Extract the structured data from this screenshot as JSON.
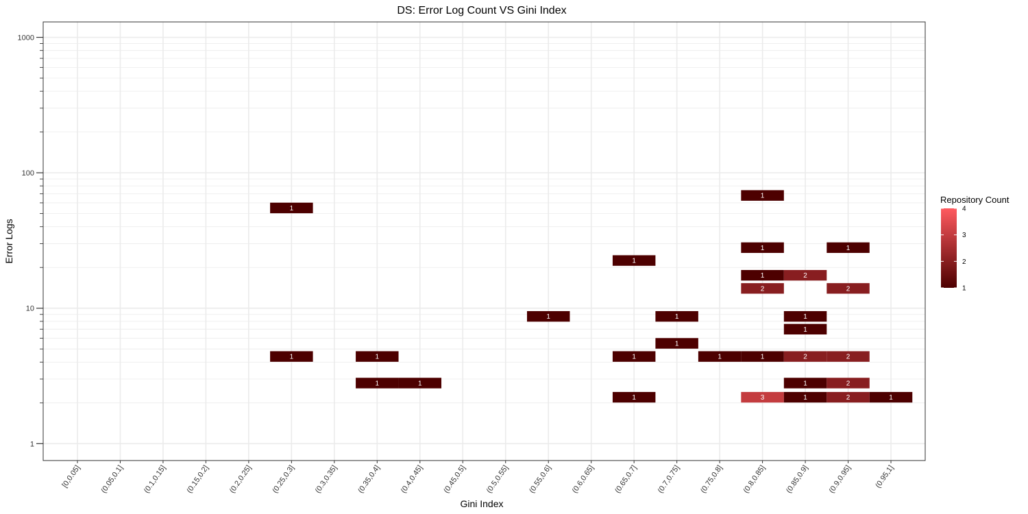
{
  "chart_data": {
    "type": "heatmap",
    "title": "DS: Error Log Count VS Gini Index",
    "xlabel": "Gini Index",
    "ylabel": "Error Logs",
    "y_scale": "log10",
    "ylim": [
      0.75,
      1300
    ],
    "y_ticks": [
      1,
      10,
      100,
      1000
    ],
    "y_tick_labels": [
      "1",
      "10",
      "100",
      "1000"
    ],
    "categories": [
      "[0,0.05]",
      "(0.05,0.1]",
      "(0.1,0.15]",
      "(0.15,0.2]",
      "(0.2,0.25]",
      "(0.25,0.3]",
      "(0.3,0.35]",
      "(0.35,0.4]",
      "(0.4,0.45]",
      "(0.45,0.5]",
      "(0.5,0.55]",
      "(0.55,0.6]",
      "(0.6,0.65]",
      "(0.65,0.7]",
      "(0.7,0.75]",
      "(0.75,0.8]",
      "(0.8,0.85]",
      "(0.85,0.9]",
      "(0.9,0.95]",
      "(0.95,1]"
    ],
    "grid": true,
    "legend": {
      "title": "Repository Count",
      "position": "right",
      "min": 1,
      "max": 4,
      "ticks": [
        1,
        2,
        3,
        4
      ],
      "colors": {
        "low": "#4d0000",
        "high": "#ff5a5f"
      }
    },
    "cells": [
      {
        "x": "(0.25,0.3]",
        "y": 55,
        "value": 1
      },
      {
        "x": "(0.25,0.3]",
        "y": 4.4,
        "value": 1
      },
      {
        "x": "(0.35,0.4]",
        "y": 4.4,
        "value": 1
      },
      {
        "x": "(0.35,0.4]",
        "y": 2.8,
        "value": 1
      },
      {
        "x": "(0.4,0.45]",
        "y": 2.8,
        "value": 1
      },
      {
        "x": "(0.55,0.6]",
        "y": 8.7,
        "value": 1
      },
      {
        "x": "(0.65,0.7]",
        "y": 22.5,
        "value": 1
      },
      {
        "x": "(0.65,0.7]",
        "y": 4.4,
        "value": 1
      },
      {
        "x": "(0.65,0.7]",
        "y": 2.2,
        "value": 1
      },
      {
        "x": "(0.7,0.75]",
        "y": 8.7,
        "value": 1
      },
      {
        "x": "(0.7,0.75]",
        "y": 5.5,
        "value": 1
      },
      {
        "x": "(0.75,0.8]",
        "y": 4.4,
        "value": 1
      },
      {
        "x": "(0.8,0.85]",
        "y": 68,
        "value": 1
      },
      {
        "x": "(0.8,0.85]",
        "y": 28,
        "value": 1
      },
      {
        "x": "(0.8,0.85]",
        "y": 17.5,
        "value": 1
      },
      {
        "x": "(0.8,0.85]",
        "y": 14,
        "value": 2
      },
      {
        "x": "(0.8,0.85]",
        "y": 4.4,
        "value": 1
      },
      {
        "x": "(0.8,0.85]",
        "y": 2.2,
        "value": 3
      },
      {
        "x": "(0.85,0.9]",
        "y": 17.5,
        "value": 2
      },
      {
        "x": "(0.85,0.9]",
        "y": 8.7,
        "value": 1
      },
      {
        "x": "(0.85,0.9]",
        "y": 7,
        "value": 1
      },
      {
        "x": "(0.85,0.9]",
        "y": 4.4,
        "value": 2
      },
      {
        "x": "(0.85,0.9]",
        "y": 2.8,
        "value": 1
      },
      {
        "x": "(0.85,0.9]",
        "y": 2.2,
        "value": 1
      },
      {
        "x": "(0.9,0.95]",
        "y": 28,
        "value": 1
      },
      {
        "x": "(0.9,0.95]",
        "y": 14,
        "value": 2
      },
      {
        "x": "(0.9,0.95]",
        "y": 4.4,
        "value": 2
      },
      {
        "x": "(0.9,0.95]",
        "y": 2.8,
        "value": 2
      },
      {
        "x": "(0.9,0.95]",
        "y": 2.2,
        "value": 2
      },
      {
        "x": "(0.95,1]",
        "y": 2.2,
        "value": 1
      }
    ]
  }
}
